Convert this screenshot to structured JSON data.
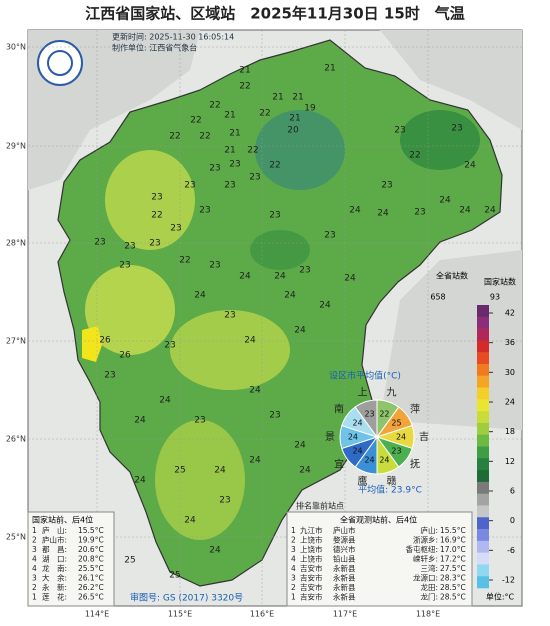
{
  "title": "江西省国家站、区域站　2025年11月30日 15时　气温",
  "update_time": "更新时间: 2025-11-30 16:05:14",
  "producer": "制作单位: 江西省气象台",
  "latitudes": [
    "30°N",
    "29°N",
    "28°N",
    "27°N",
    "26°N",
    "25°N"
  ],
  "longitudes": [
    "114°E",
    "115°E",
    "116°E",
    "117°E",
    "118°E"
  ],
  "station_values": [
    21,
    21,
    21,
    21,
    19,
    21,
    22,
    22,
    21,
    21,
    20,
    22,
    22,
    22,
    22,
    22,
    21,
    23,
    22,
    23,
    23,
    23,
    23,
    23,
    22,
    23,
    23,
    23,
    23,
    23,
    23,
    22,
    23,
    24,
    24,
    23,
    24,
    24,
    24,
    23,
    24,
    24,
    24,
    24,
    23,
    22,
    23,
    24,
    23,
    23,
    24,
    23,
    24,
    24,
    26,
    23,
    26,
    23,
    24,
    24,
    23,
    24,
    23,
    24,
    24,
    24,
    25,
    24,
    24,
    24,
    25,
    25,
    23,
    24,
    24,
    23
  ],
  "legend": {
    "total_label": "全省站数",
    "total": 658,
    "national_label": "国家站数",
    "national": 93,
    "ticks": [
      42,
      36,
      30,
      24,
      18,
      12,
      6,
      0,
      -6,
      -12
    ],
    "unit": "单位:°C"
  },
  "pie": {
    "title": "设区市平均值(°C)",
    "slices": [
      {
        "name": "九",
        "value": 22,
        "color": "#8fc46a"
      },
      {
        "name": "萍",
        "value": 25,
        "color": "#f2a33a"
      },
      {
        "name": "吉",
        "value": 24,
        "color": "#e8d93f"
      },
      {
        "name": "抚",
        "value": 23,
        "color": "#4caf50"
      },
      {
        "name": "赣",
        "value": 24,
        "color": "#c8dc3c"
      },
      {
        "name": "鹰",
        "value": 24,
        "color": "#3a8fd6"
      },
      {
        "name": "宜",
        "value": 24,
        "color": "#2f6bc4"
      },
      {
        "name": "景",
        "value": 24,
        "color": "#6fc3e8"
      },
      {
        "name": "南",
        "value": 24,
        "color": "#a9def0"
      },
      {
        "name": "上",
        "value": 23,
        "color": "#9e9e9e"
      }
    ],
    "average": "平均值: 23.9°C"
  },
  "ranking_title": "排名靠前站点",
  "national_ranking": {
    "title": "国家站前、后4位",
    "rows": [
      [
        "1",
        "庐　山:",
        "15.5°C"
      ],
      [
        "2",
        "庐山市:",
        "19.9°C"
      ],
      [
        "3",
        "都　昌:",
        "20.6°C"
      ],
      [
        "4",
        "湖　口:",
        "20.8°C"
      ],
      [
        "4",
        "龙　南:",
        "25.5°C"
      ],
      [
        "3",
        "大　余:",
        "26.1°C"
      ],
      [
        "2",
        "永　新:",
        "26.2°C"
      ],
      [
        "1",
        "莲　花:",
        "26.5°C"
      ]
    ]
  },
  "province_ranking": {
    "title": "全省观测站前、后4位",
    "rows": [
      [
        "1",
        "九江市",
        "庐山市",
        "庐山:",
        "15.5°C"
      ],
      [
        "2",
        "上饶市",
        "婺源县",
        "浙源乡:",
        "16.9°C"
      ],
      [
        "3",
        "上饶市",
        "德兴市",
        "香屯枢纽:",
        "17.0°C"
      ],
      [
        "4",
        "上饶市",
        "铅山县",
        "嵘轩乡:",
        "17.2°C"
      ],
      [
        "4",
        "吉安市",
        "永新县",
        "三湾:",
        "27.5°C"
      ],
      [
        "3",
        "吉安市",
        "永新县",
        "龙源口:",
        "28.3°C"
      ],
      [
        "2",
        "吉安市",
        "永新县",
        "龙田:",
        "28.5°C"
      ],
      [
        "1",
        "吉安市",
        "永新县",
        "龙门:",
        "28.5°C"
      ]
    ]
  },
  "approval": "审图号: GS (2017) 3320号"
}
